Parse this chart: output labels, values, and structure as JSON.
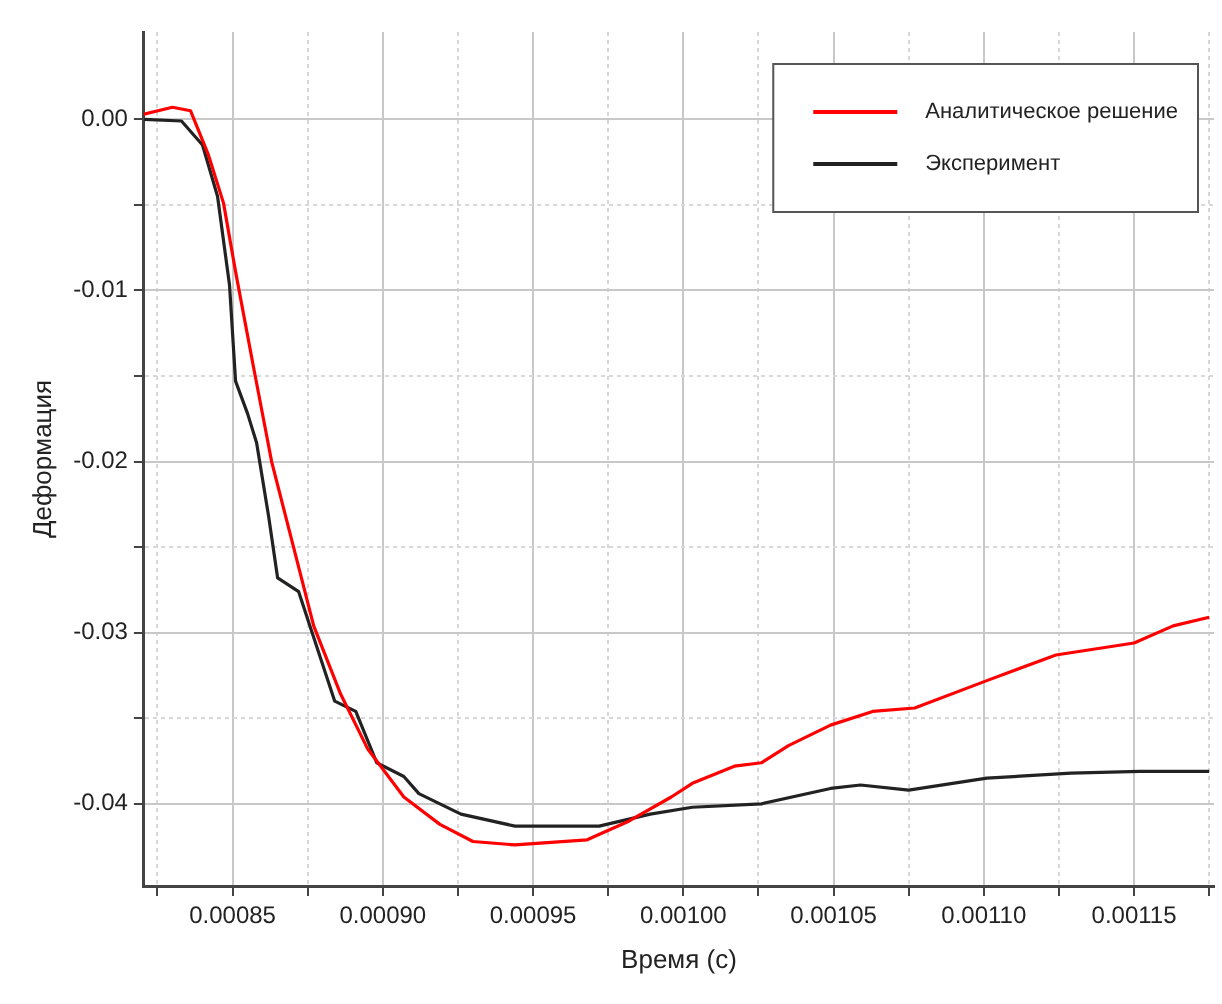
{
  "chart_data": {
    "type": "line",
    "xlabel": "Время (с)",
    "ylabel": "Деформация",
    "xlim": [
      0.0008205,
      0.0011766
    ],
    "ylim": [
      -0.0448,
      0.0051
    ],
    "xticks": [
      {
        "value": 0.000825,
        "label": null
      },
      0.00085,
      {
        "value": 0.000875,
        "label": null
      },
      {
        "value": 0.0009,
        "label": "0.00090"
      },
      {
        "value": 0.000925,
        "label": null
      },
      0.00095,
      {
        "value": 0.000975,
        "label": null
      },
      {
        "value": 0.001,
        "label": "0.00100"
      },
      {
        "value": 0.001025,
        "label": null
      },
      0.00105,
      {
        "value": 0.001075,
        "label": null
      },
      {
        "value": 0.0011,
        "label": "0.00110"
      },
      {
        "value": 0.001125,
        "label": null
      },
      0.00115,
      {
        "value": 0.001175,
        "label": null
      }
    ],
    "yticks": [
      {
        "value": -0.04,
        "label": "-0.04"
      },
      {
        "value": -0.035,
        "label": null
      },
      {
        "value": -0.03,
        "label": "-0.03"
      },
      {
        "value": -0.025,
        "label": null
      },
      {
        "value": -0.02,
        "label": "-0.02"
      },
      {
        "value": -0.015,
        "label": null
      },
      {
        "value": -0.01,
        "label": "-0.01"
      },
      {
        "value": -0.005,
        "label": null
      },
      {
        "value": 0,
        "label": "0.00"
      }
    ],
    "grid": true,
    "legend": "top right",
    "line_style": "solid",
    "marker": "none",
    "series": [
      {
        "name": "Аналитическое решение",
        "color": "#ff0000",
        "x": [
          0.0008205,
          0.00083,
          0.000836,
          0.000842,
          0.000847,
          0.000851,
          0.000857,
          0.000863,
          0.00087,
          0.000877,
          0.000886,
          0.000895,
          0.000907,
          0.000919,
          0.00093,
          0.000944,
          0.000968,
          0.000982,
          0.000996,
          0.001003,
          0.001017,
          0.001026,
          0.001035,
          0.001049,
          0.001063,
          0.001077,
          0.001101,
          0.001124,
          0.00115,
          0.001163,
          0.001175
        ],
        "values": [
          0.0003,
          0.0007,
          0.0005,
          -0.0021,
          -0.0049,
          -0.0089,
          -0.0145,
          -0.02,
          -0.0248,
          -0.0296,
          -0.0336,
          -0.0368,
          -0.0396,
          -0.0412,
          -0.0422,
          -0.0424,
          -0.0421,
          -0.041,
          -0.0396,
          -0.0388,
          -0.0378,
          -0.0376,
          -0.0366,
          -0.0354,
          -0.0346,
          -0.0344,
          -0.0328,
          -0.0313,
          -0.0306,
          -0.0296,
          -0.0291
        ]
      },
      {
        "name": "Эксперимент",
        "color": "#222222",
        "x": [
          0.0008205,
          0.000833,
          0.00084,
          0.000845,
          0.000849,
          0.000851,
          0.000855,
          0.000858,
          0.000862,
          0.000865,
          0.000872,
          0.000878,
          0.000884,
          0.000891,
          0.000898,
          0.000907,
          0.000912,
          0.000926,
          0.000944,
          0.000972,
          0.000989,
          0.001003,
          0.001026,
          0.001049,
          0.001059,
          0.001075,
          0.001101,
          0.001129,
          0.001152,
          0.001175
        ],
        "values": [
          0,
          -0.0001,
          -0.0015,
          -0.0045,
          -0.0097,
          -0.0153,
          -0.0172,
          -0.0189,
          -0.0232,
          -0.0268,
          -0.0276,
          -0.0308,
          -0.034,
          -0.0346,
          -0.0376,
          -0.0384,
          -0.0394,
          -0.0406,
          -0.0413,
          -0.0413,
          -0.0406,
          -0.0402,
          -0.04,
          -0.0391,
          -0.0389,
          -0.0392,
          -0.0385,
          -0.0382,
          -0.0381,
          -0.0381
        ]
      }
    ]
  }
}
